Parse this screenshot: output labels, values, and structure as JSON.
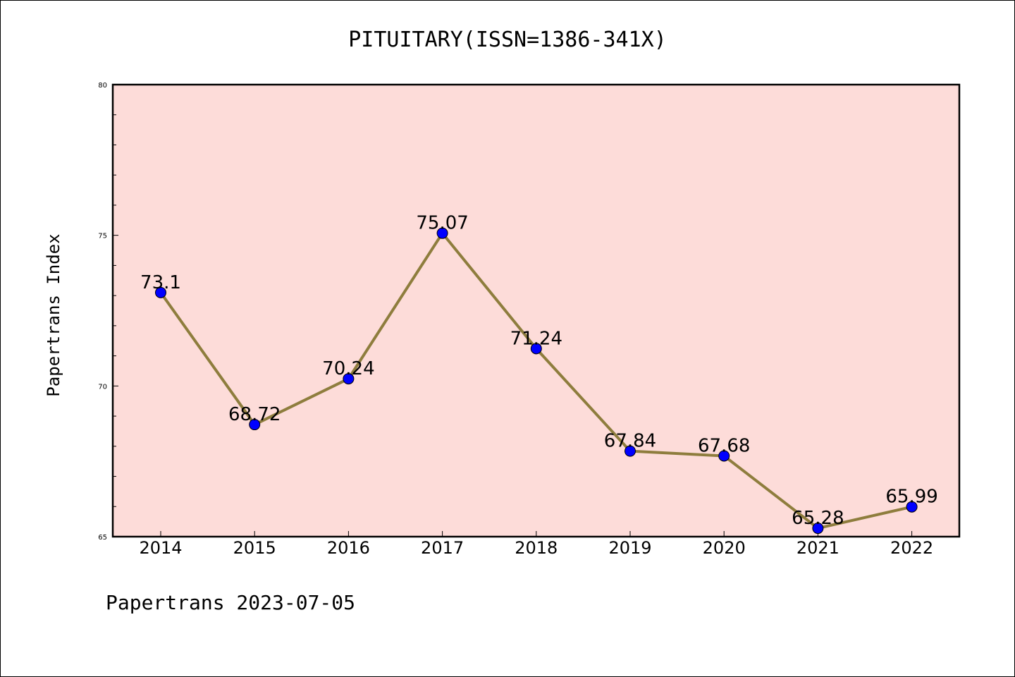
{
  "chart_data": {
    "type": "line",
    "title": "PITUITARY(ISSN=1386-341X)",
    "ylabel": "Papertrans Index",
    "xlabel": "",
    "footer": "Papertrans 2023-07-05",
    "categories": [
      "2014",
      "2015",
      "2016",
      "2017",
      "2018",
      "2019",
      "2020",
      "2021",
      "2022"
    ],
    "series": [
      {
        "values": [
          73.1,
          68.72,
          70.24,
          75.07,
          71.24,
          67.84,
          67.68,
          65.28,
          65.99
        ],
        "labels": [
          "73.1",
          "68.72",
          "70.24",
          "75.07",
          "71.24",
          "67.84",
          "67.68",
          "65.28",
          "65.99"
        ]
      }
    ],
    "ylim": [
      65,
      80
    ],
    "yticks": [
      65,
      70,
      75,
      80
    ],
    "ytick_labels": [
      "65",
      "70",
      "75",
      "80"
    ],
    "grid": false,
    "legend": "none",
    "colors": {
      "plot_background": "#fddcd9",
      "line": "#8e7d3d",
      "marker": "#0000ff",
      "axes": "#000000"
    }
  }
}
